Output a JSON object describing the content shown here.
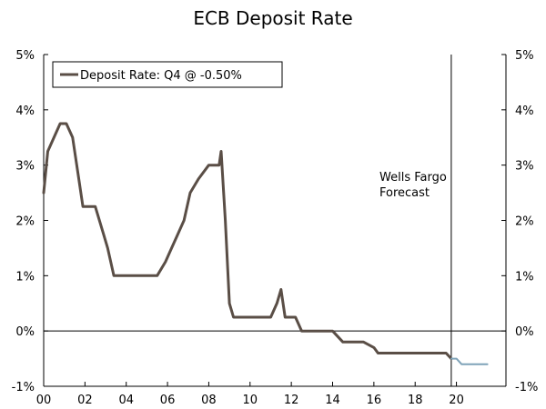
{
  "chart_data": {
    "type": "line",
    "title": "ECB Deposit Rate",
    "xlabel": "",
    "ylabel": "",
    "xlim": [
      2000,
      2022.4
    ],
    "ylim": [
      -1,
      5
    ],
    "x_ticks": [
      2000,
      2002,
      2004,
      2006,
      2008,
      2010,
      2012,
      2014,
      2016,
      2018,
      2020
    ],
    "x_tick_labels": [
      "00",
      "02",
      "04",
      "06",
      "08",
      "10",
      "12",
      "14",
      "16",
      "18",
      "20"
    ],
    "y_ticks": [
      5,
      4,
      3,
      2,
      1,
      0,
      -1
    ],
    "y_tick_labels": [
      "5%",
      "4%",
      "3%",
      "2%",
      "1%",
      "0%",
      "-1%"
    ],
    "legend": {
      "position": "top-left",
      "entries": [
        "Deposit Rate: Q4 @ -0.50%"
      ]
    },
    "annotation": {
      "line1": "Wells Fargo",
      "line2": "Forecast",
      "forecast_start": 2019.75
    },
    "colors": {
      "actual": "#5a4e46",
      "forecast": "#7fa3b8",
      "axis": "#000000"
    },
    "series": [
      {
        "name": "Deposit Rate: Q4 @ -0.50%",
        "x": [
          2000.0,
          2000.2,
          2000.5,
          2000.8,
          2001.1,
          2001.4,
          2001.7,
          2001.9,
          2002.5,
          2002.9,
          2003.1,
          2003.4,
          2004.0,
          2005.0,
          2005.5,
          2005.9,
          2006.2,
          2006.5,
          2006.8,
          2007.1,
          2007.5,
          2008.0,
          2008.2,
          2008.5,
          2008.6,
          2008.8,
          2009.0,
          2009.2,
          2009.4,
          2010.0,
          2011.0,
          2011.3,
          2011.5,
          2011.7,
          2011.9,
          2012.2,
          2012.5,
          2013.0,
          2014.0,
          2014.5,
          2015.0,
          2015.5,
          2016.0,
          2016.2,
          2017.0,
          2018.0,
          2019.0,
          2019.5,
          2019.75
        ],
        "y": [
          2.5,
          3.25,
          3.5,
          3.75,
          3.75,
          3.5,
          2.75,
          2.25,
          2.25,
          1.75,
          1.5,
          1.0,
          1.0,
          1.0,
          1.0,
          1.25,
          1.5,
          1.75,
          2.0,
          2.5,
          2.75,
          3.0,
          3.0,
          3.0,
          3.25,
          2.0,
          0.5,
          0.25,
          0.25,
          0.25,
          0.25,
          0.5,
          0.75,
          0.25,
          0.25,
          0.25,
          0.0,
          0.0,
          0.0,
          -0.2,
          -0.2,
          -0.2,
          -0.3,
          -0.4,
          -0.4,
          -0.4,
          -0.4,
          -0.4,
          -0.5
        ]
      },
      {
        "name": "Wells Fargo Forecast",
        "x": [
          2019.75,
          2020.0,
          2020.25,
          2020.5,
          2021.0,
          2021.5
        ],
        "y": [
          -0.5,
          -0.5,
          -0.6,
          -0.6,
          -0.6,
          -0.6
        ]
      }
    ]
  }
}
